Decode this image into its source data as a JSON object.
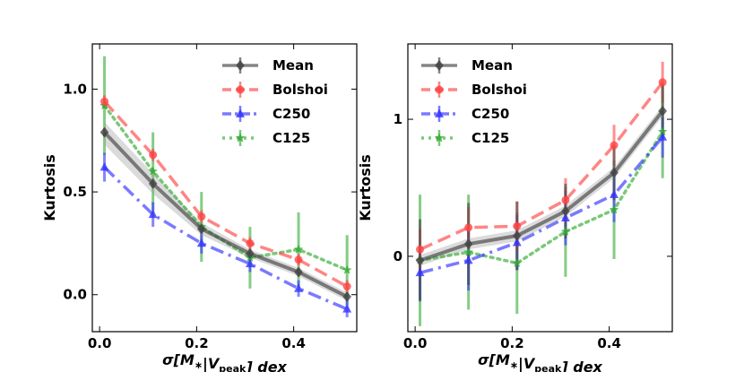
{
  "chart_data": [
    {
      "type": "line",
      "title": "",
      "xlabel": {
        "sigma": "σ",
        "open": "[",
        "M": "M",
        "star": "∗",
        "bar": "|",
        "V": "V",
        "sub": "peak",
        "close": "]",
        "dex": " dex"
      },
      "ylabel": "Kurtosis",
      "xlim": [
        -0.015,
        0.53
      ],
      "ylim": [
        -0.18,
        1.22
      ],
      "xticks": [
        0.0,
        0.2,
        0.4
      ],
      "xtick_labels": [
        "0.0",
        "0.2",
        "0.4"
      ],
      "yticks": [
        0.0,
        0.5,
        1.0
      ],
      "ytick_labels": [
        "0.0",
        "0.5",
        "1.0"
      ],
      "legend_position": "upper-right",
      "x": [
        0.01,
        0.11,
        0.21,
        0.31,
        0.41,
        0.51
      ],
      "series": [
        {
          "name": "Mean",
          "color": "#444444",
          "marker": "diamond",
          "dash": "solid",
          "values": [
            0.79,
            0.54,
            0.32,
            0.2,
            0.11,
            -0.01
          ],
          "err": [
            0.02,
            0.02,
            0.02,
            0.02,
            0.02,
            0.02
          ],
          "band_low": [
            0.73,
            0.49,
            0.29,
            0.18,
            0.09,
            -0.03
          ],
          "band_high": [
            0.84,
            0.59,
            0.35,
            0.22,
            0.13,
            0.01
          ]
        },
        {
          "name": "Bolshoi",
          "color": "#ff4444",
          "marker": "circle",
          "dash": "dashed",
          "values": [
            0.94,
            0.68,
            0.38,
            0.25,
            0.17,
            0.04
          ],
          "err": [
            0.03,
            0.03,
            0.03,
            0.03,
            0.03,
            0.03
          ]
        },
        {
          "name": "C250",
          "color": "#3333ff",
          "marker": "triangle",
          "dash": "dashdot",
          "values": [
            0.62,
            0.39,
            0.25,
            0.15,
            0.03,
            -0.07
          ],
          "err": [
            0.07,
            0.06,
            0.05,
            0.04,
            0.04,
            0.04
          ]
        },
        {
          "name": "C125",
          "color": "#33aa33",
          "marker": "star",
          "dash": "dotted",
          "values": [
            0.92,
            0.6,
            0.33,
            0.18,
            0.22,
            0.12
          ],
          "err": [
            0.24,
            0.19,
            0.17,
            0.15,
            0.18,
            0.17
          ]
        }
      ]
    },
    {
      "type": "line",
      "title": "",
      "xlabel": {
        "sigma": "σ",
        "open": "[",
        "M": "M",
        "star": "∗",
        "bar": "|",
        "V": "V",
        "sub": "peak",
        "close": "]",
        "dex": " dex"
      },
      "ylabel": "Kurtosis",
      "xlim": [
        -0.015,
        0.53
      ],
      "ylim": [
        -0.55,
        1.55
      ],
      "xticks": [
        0.0,
        0.2,
        0.4
      ],
      "xtick_labels": [
        "0.0",
        "0.2",
        "0.4"
      ],
      "yticks": [
        0,
        1
      ],
      "ytick_labels": [
        "0",
        "1"
      ],
      "legend_position": "upper-left",
      "x": [
        0.01,
        0.11,
        0.21,
        0.31,
        0.41,
        0.51
      ],
      "series": [
        {
          "name": "Mean",
          "color": "#444444",
          "marker": "diamond",
          "dash": "solid",
          "values": [
            -0.03,
            0.09,
            0.15,
            0.33,
            0.61,
            1.06
          ],
          "err": [
            0.3,
            0.3,
            0.25,
            0.2,
            0.2,
            0.2
          ],
          "band_low": [
            -0.07,
            0.05,
            0.11,
            0.29,
            0.57,
            1.02
          ],
          "band_high": [
            0.01,
            0.13,
            0.19,
            0.37,
            0.65,
            1.1
          ]
        },
        {
          "name": "Bolshoi",
          "color": "#ff4444",
          "marker": "circle",
          "dash": "dashed",
          "values": [
            0.05,
            0.21,
            0.22,
            0.41,
            0.81,
            1.27
          ],
          "err": [
            0.15,
            0.15,
            0.18,
            0.16,
            0.15,
            0.15
          ]
        },
        {
          "name": "C250",
          "color": "#3333ff",
          "marker": "triangle",
          "dash": "dashdot",
          "values": [
            -0.12,
            -0.03,
            0.1,
            0.28,
            0.45,
            0.87
          ],
          "err": [
            0.2,
            0.22,
            0.2,
            0.2,
            0.2,
            0.15
          ]
        },
        {
          "name": "C125",
          "color": "#33aa33",
          "marker": "star",
          "dash": "dotted",
          "values": [
            -0.03,
            0.03,
            -0.05,
            0.18,
            0.34,
            0.91
          ],
          "err": [
            0.48,
            0.42,
            0.37,
            0.33,
            0.36,
            0.34
          ]
        }
      ]
    }
  ]
}
